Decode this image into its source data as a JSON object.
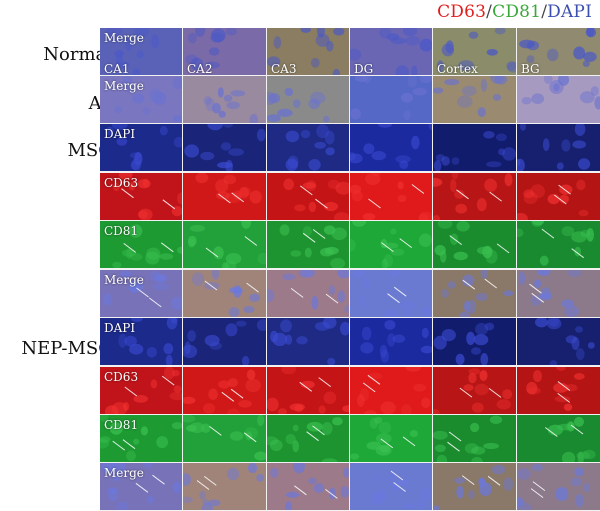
{
  "legend": {
    "cd63": "CD63",
    "sep1": "/",
    "cd81": "CD81",
    "sep2": "/",
    "dapi": "DAPI"
  },
  "colors": {
    "cd63": "#e0201e",
    "cd81": "#3aa83a",
    "dapi": "#3b4fae"
  },
  "row_labels": [
    "Normal",
    "Aβ",
    "MSC",
    "NEP-MSC"
  ],
  "regions": [
    "CA1",
    "CA2",
    "CA3",
    "DG",
    "Cortex",
    "BG"
  ],
  "rows": [
    {
      "label": "Merge",
      "stain": "merge-normal"
    },
    {
      "label": "Merge",
      "stain": "merge-ab"
    },
    {
      "label": "DAPI",
      "stain": "dapi"
    },
    {
      "label": "CD63",
      "stain": "cd63"
    },
    {
      "label": "CD81",
      "stain": "cd81"
    },
    {
      "label": "Merge",
      "stain": "merge"
    },
    {
      "label": "DAPI",
      "stain": "dapi"
    },
    {
      "label": "CD63",
      "stain": "cd63"
    },
    {
      "label": "CD81",
      "stain": "cd81"
    },
    {
      "label": "Merge",
      "stain": "merge"
    }
  ]
}
